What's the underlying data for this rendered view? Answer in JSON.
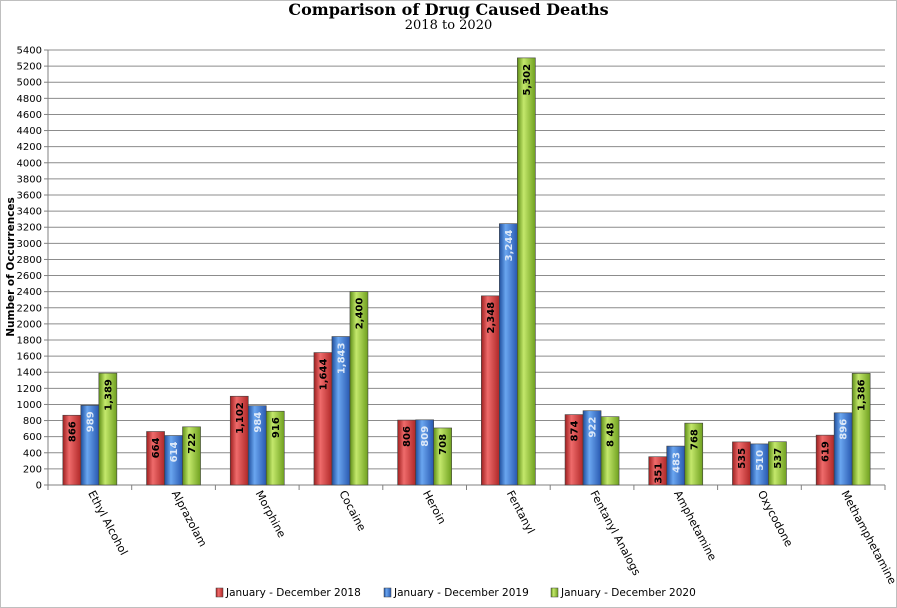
{
  "chart_data": {
    "type": "bar",
    "title": "Comparison of Drug Caused Deaths",
    "subtitle": "2018 to 2020",
    "ylabel": "Number of Occurrences",
    "xlabel": "",
    "ylim": [
      0,
      5400
    ],
    "ytick_step": 200,
    "grid": true,
    "legend_position": "bottom",
    "categories": [
      "Ethyl Alcohol",
      "Alprazolam",
      "Morphine",
      "Cocaine",
      "Heroin",
      "Fentanyl",
      "Fentanyl Analogs",
      "Amphetamine",
      "Oxycodone",
      "Methamphetamine"
    ],
    "series": [
      {
        "name": "January - December 2018",
        "color": "#e03c3c",
        "label_color": "#000000",
        "values": [
          866,
          664,
          1102,
          1644,
          806,
          2348,
          874,
          351,
          535,
          619
        ],
        "labels": [
          "866",
          "664",
          "1,102",
          "1,644",
          "806",
          "2,348",
          "874",
          "351",
          "535",
          "619"
        ]
      },
      {
        "name": "January - December 2019",
        "color": "#3c7fe0",
        "label_color": "#dce8f8",
        "values": [
          989,
          614,
          984,
          1843,
          809,
          3244,
          922,
          483,
          510,
          896
        ],
        "labels": [
          "989",
          "614",
          "984",
          "1,843",
          "809",
          "3,244",
          "922",
          "483",
          "510",
          "896"
        ]
      },
      {
        "name": "January - December 2020",
        "color": "#9acd32",
        "label_color": "#000000",
        "values": [
          1389,
          722,
          916,
          2400,
          708,
          5302,
          848,
          768,
          537,
          1386
        ],
        "labels": [
          "1,389",
          "722",
          "916",
          "2,400",
          "708",
          "5,302",
          "8 48",
          "768",
          "537",
          "1,386"
        ]
      }
    ]
  }
}
